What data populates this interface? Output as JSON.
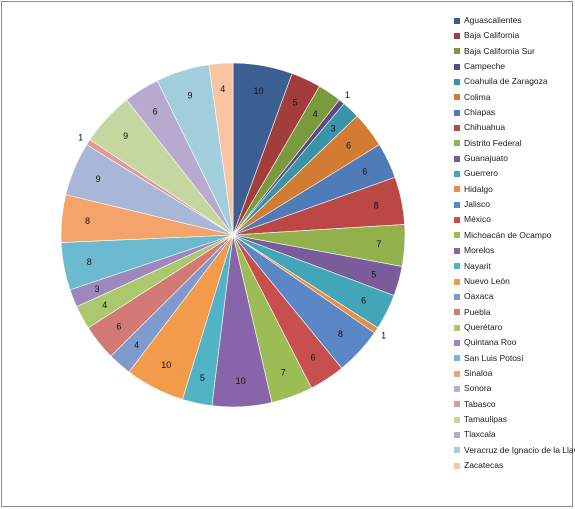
{
  "chart_data": {
    "type": "pie",
    "title": "",
    "legend_position": "right",
    "categories": [
      "Aguascalientes",
      "Baja California",
      "Baja California Sur",
      "Campeche",
      "Coahuila de Zaragoza",
      "Colima",
      "Chiapas",
      "Chihuahua",
      "Distrito Federal",
      "Guanajuato",
      "Guerrero",
      "Hidalgo",
      "Jalisco",
      "México",
      "Michoacán de Ocampo",
      "Morelos",
      "Nayarit",
      "Nuevo León",
      "Oaxaca",
      "Puebla",
      "Querétaro",
      "Quintana Roo",
      "San Luis Potosí",
      "Sinaloa",
      "Sonora",
      "Tabasco",
      "Tamaulipas",
      "Tlaxcala",
      "Veracruz de Ignacio de la Llave",
      "Zacatecas"
    ],
    "values": [
      10,
      5,
      4,
      1,
      3,
      6,
      6,
      8,
      7,
      5,
      6,
      1,
      8,
      6,
      7,
      10,
      5,
      10,
      4,
      6,
      4,
      3,
      8,
      8,
      9,
      1,
      9,
      6,
      9,
      4
    ],
    "colors": [
      "#3c5f91",
      "#a33d3b",
      "#7a9a3c",
      "#5c4a86",
      "#3b93a8",
      "#d27b33",
      "#4f7bb8",
      "#bc4846",
      "#92b14d",
      "#7a5c9b",
      "#43a6b8",
      "#e8903f",
      "#5c87c6",
      "#c7504e",
      "#9cbc55",
      "#8765a8",
      "#52b2c6",
      "#f29b4b",
      "#7f9bcd",
      "#d27875",
      "#abc86e",
      "#9d87bd",
      "#6cbad0",
      "#f4a46a",
      "#a8b6d8",
      "#e09a98",
      "#c5d79f",
      "#b8a9cf",
      "#a3cedb",
      "#f8c4a2"
    ]
  }
}
